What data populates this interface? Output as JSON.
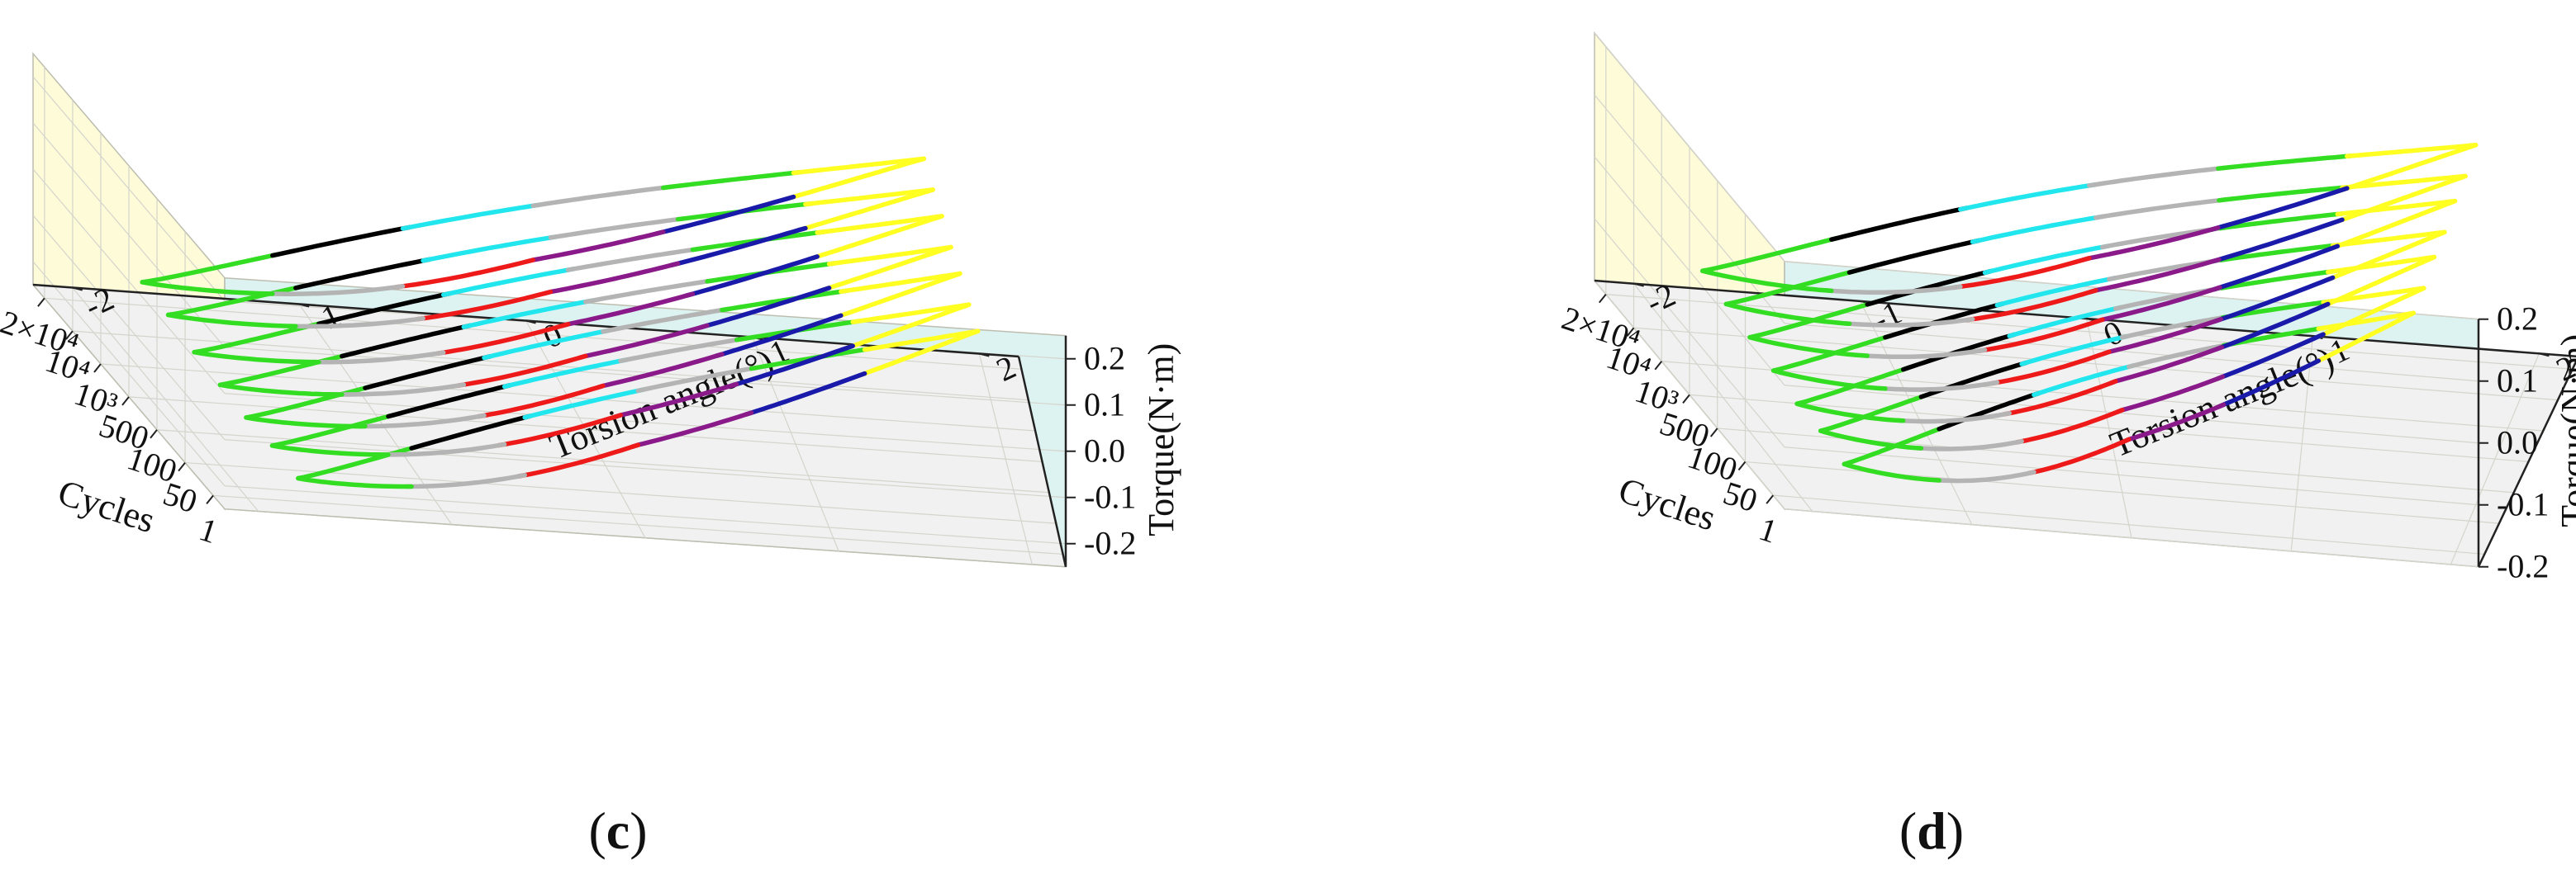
{
  "colors": {
    "left_wall": "#fdfbd8",
    "back_wall": "#ddf3f1",
    "floor": "#f1f1f1",
    "grid": "#d4d4cc",
    "axis": "#222222",
    "segments": {
      "green": "#33dd22",
      "yellow": "#ffff22",
      "black": "#000000",
      "cyan": "#22e6ee",
      "silver": "#b4b4b4",
      "red": "#ee1a1a",
      "purple": "#8a1a8a",
      "blue": "#1a1aaa"
    }
  },
  "chart_data": [
    {
      "type": "line",
      "panel_label": "(c)",
      "panel_letter": "c",
      "paren_open": "(",
      "paren_close": ")",
      "xlabel": "Cycles",
      "ylabel": "Torsion angle(°)",
      "zlabel": "Torque(N·m)",
      "x_categories": [
        "1",
        "50",
        "100",
        "500",
        "10³",
        "10⁴",
        "2×10⁴"
      ],
      "y_ticks": [
        "-2",
        "-1",
        "0",
        "1",
        "2"
      ],
      "z_ticks": [
        "0.2",
        "0.1",
        "0.0",
        "-0.1",
        "-0.2"
      ],
      "ylim": [
        -2,
        2
      ],
      "zlim": [
        -0.25,
        0.25
      ],
      "series_note": "Hysteresis loops of torque vs torsion angle, one per cycle count; loops coloured in segments",
      "loops": [
        {
          "cycles": "1",
          "torsion_range": [
            -1.6,
            1.6
          ],
          "torque_range": [
            -0.2,
            0.22
          ]
        },
        {
          "cycles": "50",
          "torsion_range": [
            -1.6,
            1.6
          ],
          "torque_range": [
            -0.2,
            0.21
          ]
        },
        {
          "cycles": "100",
          "torsion_range": [
            -1.6,
            1.6
          ],
          "torque_range": [
            -0.21,
            0.21
          ]
        },
        {
          "cycles": "500",
          "torsion_range": [
            -1.6,
            1.6
          ],
          "torque_range": [
            -0.21,
            0.2
          ]
        },
        {
          "cycles": "10³",
          "torsion_range": [
            -1.6,
            1.6
          ],
          "torque_range": [
            -0.21,
            0.2
          ]
        },
        {
          "cycles": "10⁴",
          "torsion_range": [
            -1.6,
            1.6
          ],
          "torque_range": [
            -0.2,
            0.19
          ]
        },
        {
          "cycles": "2×10⁴",
          "torsion_range": [
            -1.6,
            1.6
          ],
          "torque_range": [
            -0.2,
            0.19
          ]
        }
      ]
    },
    {
      "type": "line",
      "panel_label": "(d)",
      "panel_letter": "d",
      "paren_open": "(",
      "paren_close": ")",
      "xlabel": "Cycles",
      "ylabel": "Torsion angle(°)",
      "zlabel": "Torque(N·m)",
      "x_categories": [
        "1",
        "50",
        "100",
        "500",
        "10³",
        "10⁴",
        "2×10⁴"
      ],
      "y_ticks": [
        "-2",
        "-1",
        "0",
        "1",
        "2"
      ],
      "z_ticks": [
        "0.2",
        "0.1",
        "0.0",
        "-0.1",
        "-0.2"
      ],
      "ylim": [
        -2,
        2
      ],
      "zlim": [
        -0.2,
        0.2
      ],
      "series_note": "Hysteresis loops of torque vs torsion angle, one per cycle count; loops coloured in segments",
      "loops": [
        {
          "cycles": "1",
          "torsion_range": [
            -1.6,
            1.6
          ],
          "torque_range": [
            -0.14,
            0.18
          ]
        },
        {
          "cycles": "50",
          "torsion_range": [
            -1.6,
            1.6
          ],
          "torque_range": [
            -0.14,
            0.17
          ]
        },
        {
          "cycles": "100",
          "torsion_range": [
            -1.6,
            1.6
          ],
          "torque_range": [
            -0.15,
            0.17
          ]
        },
        {
          "cycles": "500",
          "torsion_range": [
            -1.6,
            1.6
          ],
          "torque_range": [
            -0.15,
            0.16
          ]
        },
        {
          "cycles": "10³",
          "torsion_range": [
            -1.6,
            1.6
          ],
          "torque_range": [
            -0.15,
            0.16
          ]
        },
        {
          "cycles": "10⁴",
          "torsion_range": [
            -1.6,
            1.6
          ],
          "torque_range": [
            -0.15,
            0.15
          ]
        },
        {
          "cycles": "2×10⁴",
          "torsion_range": [
            -1.6,
            1.6
          ],
          "torque_range": [
            -0.15,
            0.15
          ]
        }
      ]
    }
  ]
}
